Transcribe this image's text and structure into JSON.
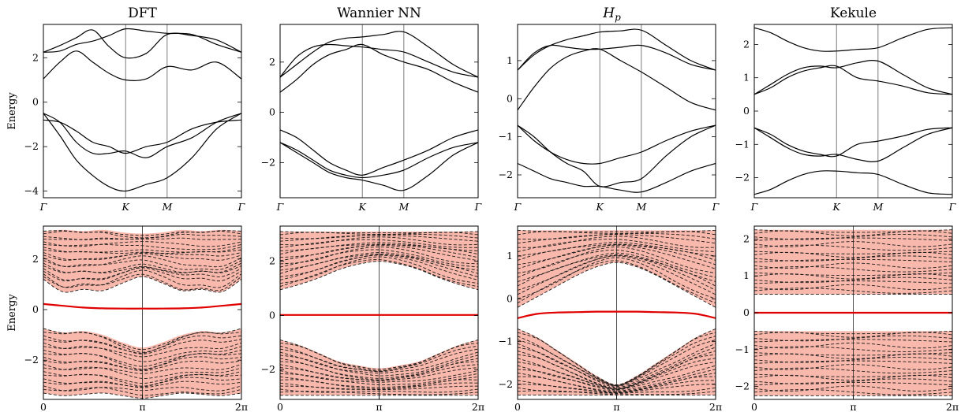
{
  "chart_data": [
    {
      "type": "line",
      "panel": "top",
      "title": "DFT",
      "ylabel": "Energy",
      "ylim": [
        -4.3,
        3.5
      ],
      "yticks": [
        -4,
        -2,
        0,
        2
      ],
      "xticks": [
        "Γ",
        "K",
        "M",
        "Γ"
      ],
      "x": [
        0,
        1,
        2,
        3,
        4,
        5,
        6,
        7,
        8,
        9,
        10
      ],
      "series": [
        {
          "values": [
            2.25,
            2.3,
            2.6,
            2.75,
            3.0,
            3.3,
            3.2,
            3.1,
            3.05,
            2.6,
            2.25
          ]
        },
        {
          "values": [
            2.25,
            2.55,
            2.9,
            3.25,
            2.5,
            2.0,
            2.2,
            3.05,
            3.0,
            2.8,
            2.25
          ]
        },
        {
          "values": [
            1.05,
            1.8,
            2.3,
            1.8,
            1.3,
            1.0,
            1.05,
            1.6,
            1.45,
            1.8,
            1.05
          ]
        },
        {
          "values": [
            -0.8,
            -0.9,
            -1.3,
            -1.8,
            -2.0,
            -2.3,
            -2.0,
            -1.8,
            -1.2,
            -0.9,
            -0.8
          ]
        },
        {
          "values": [
            -0.5,
            -0.9,
            -1.8,
            -2.3,
            -2.3,
            -2.2,
            -2.5,
            -2.0,
            -1.6,
            -0.9,
            -0.5
          ]
        },
        {
          "values": [
            -0.5,
            -1.5,
            -2.6,
            -3.3,
            -3.8,
            -4.0,
            -3.7,
            -3.4,
            -2.5,
            -1.2,
            -0.5
          ]
        }
      ]
    },
    {
      "type": "line",
      "panel": "top",
      "title": "Wannier NN",
      "ylabel": "",
      "ylim": [
        -3.4,
        3.5
      ],
      "yticks": [
        -2,
        0,
        2
      ],
      "xticks": [
        "Γ",
        "K",
        "M",
        "Γ"
      ],
      "x": [
        0,
        1,
        2,
        3,
        4,
        5,
        6,
        7,
        8,
        9,
        10
      ],
      "series": [
        {
          "values": [
            1.4,
            1.9,
            2.4,
            2.8,
            2.95,
            3.0,
            3.1,
            3.2,
            2.6,
            1.9,
            1.4
          ]
        },
        {
          "values": [
            1.4,
            2.2,
            2.6,
            2.7,
            2.65,
            2.6,
            2.5,
            2.4,
            2.0,
            1.6,
            1.4
          ]
        },
        {
          "values": [
            0.8,
            1.3,
            1.9,
            2.3,
            2.5,
            2.7,
            2.3,
            2.0,
            1.7,
            1.2,
            0.8
          ]
        },
        {
          "values": [
            -0.7,
            -1.0,
            -1.5,
            -2.0,
            -2.3,
            -2.5,
            -2.2,
            -1.9,
            -1.5,
            -1.0,
            -0.7
          ]
        },
        {
          "values": [
            -1.2,
            -1.5,
            -1.9,
            -2.3,
            -2.5,
            -2.6,
            -2.5,
            -2.3,
            -1.8,
            -1.4,
            -1.2
          ]
        },
        {
          "values": [
            -1.2,
            -1.6,
            -2.0,
            -2.4,
            -2.6,
            -2.7,
            -2.9,
            -3.1,
            -2.5,
            -1.7,
            -1.2
          ]
        }
      ]
    },
    {
      "type": "line",
      "panel": "top",
      "title": "Hp",
      "title_main": "H",
      "title_sub": "p",
      "ylabel": "",
      "ylim": [
        -2.6,
        1.95
      ],
      "yticks": [
        -2,
        -1,
        0,
        1
      ],
      "xticks": [
        "Γ",
        "K",
        "M",
        "Γ"
      ],
      "x": [
        0,
        1,
        2,
        3,
        4,
        5,
        6,
        7,
        8,
        9,
        10
      ],
      "series": [
        {
          "values": [
            0.75,
            1.15,
            1.4,
            1.55,
            1.65,
            1.75,
            1.78,
            1.8,
            1.4,
            1.0,
            0.75
          ]
        },
        {
          "values": [
            0.75,
            1.2,
            1.4,
            1.35,
            1.3,
            1.3,
            1.35,
            1.4,
            1.2,
            0.9,
            0.75
          ]
        },
        {
          "values": [
            -0.3,
            0.3,
            0.8,
            1.1,
            1.25,
            1.3,
            1.0,
            0.7,
            0.3,
            -0.1,
            -0.3
          ]
        },
        {
          "values": [
            -0.7,
            -1.0,
            -1.4,
            -1.7,
            -1.9,
            -2.3,
            -2.2,
            -2.1,
            -1.5,
            -1.0,
            -0.7
          ]
        },
        {
          "values": [
            -0.7,
            -1.1,
            -1.4,
            -1.6,
            -1.7,
            -1.7,
            -1.55,
            -1.4,
            -1.1,
            -0.85,
            -0.7
          ]
        },
        {
          "values": [
            -1.7,
            -1.9,
            -2.1,
            -2.2,
            -2.3,
            -2.3,
            -2.4,
            -2.45,
            -2.2,
            -1.9,
            -1.7
          ]
        }
      ]
    },
    {
      "type": "line",
      "panel": "top",
      "title": "Kekule",
      "ylabel": "",
      "ylim": [
        -2.6,
        2.6
      ],
      "yticks": [
        -2,
        -1,
        0,
        1,
        2
      ],
      "xticks": [
        "Γ",
        "K",
        "M",
        "Γ"
      ],
      "x": [
        0,
        1,
        2,
        3,
        4,
        5,
        6,
        7,
        8,
        9,
        10
      ],
      "series": [
        {
          "values": [
            2.5,
            2.35,
            2.1,
            1.9,
            1.8,
            1.8,
            1.85,
            1.9,
            2.2,
            2.45,
            2.5
          ]
        },
        {
          "values": [
            0.5,
            0.8,
            1.1,
            1.3,
            1.35,
            1.3,
            1.45,
            1.5,
            1.1,
            0.7,
            0.5
          ]
        },
        {
          "values": [
            0.5,
            0.7,
            1.0,
            1.2,
            1.3,
            1.35,
            1.0,
            0.9,
            0.75,
            0.55,
            0.5
          ]
        },
        {
          "values": [
            -0.5,
            -0.7,
            -1.0,
            -1.2,
            -1.3,
            -1.35,
            -1.0,
            -0.9,
            -0.75,
            -0.55,
            -0.5
          ]
        },
        {
          "values": [
            -0.5,
            -0.8,
            -1.1,
            -1.3,
            -1.35,
            -1.3,
            -1.45,
            -1.5,
            -1.1,
            -0.7,
            -0.5
          ]
        },
        {
          "values": [
            -2.5,
            -2.35,
            -2.1,
            -1.9,
            -1.8,
            -1.8,
            -1.85,
            -1.9,
            -2.2,
            -2.45,
            -2.5
          ]
        }
      ]
    },
    {
      "type": "line",
      "panel": "bottom",
      "title": "",
      "ylabel": "Energy",
      "ylim": [
        -3.55,
        3.3
      ],
      "yticks": [
        -2,
        0,
        2
      ],
      "xtick_labels": [
        "0",
        "π",
        "2π"
      ],
      "bulk_bands": [
        {
          "lower": [
            1.2,
            0.7,
            0.8,
            0.75,
            1.05,
            1.3,
            1.05,
            0.75,
            0.8,
            0.7,
            1.2
          ],
          "upper": [
            3.1,
            3.15,
            3.1,
            3.15,
            3.05,
            3.0,
            3.05,
            3.15,
            3.1,
            3.15,
            3.1
          ]
        },
        {
          "lower": [
            -3.3,
            -3.4,
            -3.35,
            -3.3,
            -3.4,
            -3.5,
            -3.4,
            -3.3,
            -3.35,
            -3.4,
            -3.3
          ],
          "upper": [
            -0.75,
            -0.9,
            -0.85,
            -1.0,
            -1.3,
            -1.5,
            -1.3,
            -1.0,
            -0.85,
            -0.9,
            -0.75
          ]
        }
      ],
      "edge_state": [
        0.22,
        0.15,
        0.08,
        0.05,
        0.04,
        0.04,
        0.04,
        0.05,
        0.08,
        0.15,
        0.22
      ]
    },
    {
      "type": "line",
      "panel": "bottom",
      "title": "",
      "ylabel": "",
      "ylim": [
        -3.1,
        3.3
      ],
      "yticks": [
        -2,
        0,
        2
      ],
      "xtick_labels": [
        "0",
        "π",
        "2π"
      ],
      "bulk_bands": [
        {
          "lower": [
            0.95,
            1.15,
            1.4,
            1.7,
            1.9,
            2.0,
            1.9,
            1.7,
            1.4,
            1.15,
            0.95
          ],
          "upper": [
            3.1,
            3.1,
            3.1,
            3.1,
            3.1,
            3.1,
            3.1,
            3.1,
            3.1,
            3.1,
            3.1
          ]
        },
        {
          "lower": [
            -2.95,
            -2.95,
            -2.95,
            -2.95,
            -2.95,
            -2.95,
            -2.95,
            -2.95,
            -2.95,
            -2.95,
            -2.95
          ],
          "upper": [
            -0.9,
            -1.1,
            -1.4,
            -1.7,
            -1.85,
            -1.95,
            -1.85,
            -1.7,
            -1.4,
            -1.1,
            -0.9
          ]
        }
      ],
      "edge_state": [
        0.02,
        0.02,
        0.02,
        0.02,
        0.02,
        0.02,
        0.02,
        0.02,
        0.02,
        0.02,
        0.02
      ]
    },
    {
      "type": "line",
      "panel": "bottom",
      "title": "",
      "ylabel": "",
      "ylim": [
        -2.35,
        1.7
      ],
      "yticks": [
        -2,
        -1,
        0,
        1
      ],
      "xtick_labels": [
        "0",
        "π",
        "2π"
      ],
      "bulk_bands": [
        {
          "lower": [
            -0.2,
            0.05,
            0.3,
            0.55,
            0.75,
            0.85,
            0.75,
            0.55,
            0.3,
            0.05,
            -0.2
          ],
          "upper": [
            1.6,
            1.6,
            1.6,
            1.6,
            1.6,
            1.6,
            1.6,
            1.6,
            1.6,
            1.6,
            1.6
          ]
        },
        {
          "lower": [
            -2.25,
            -2.25,
            -2.25,
            -2.25,
            -2.25,
            -2.25,
            -2.25,
            -2.25,
            -2.25,
            -2.25,
            -2.25
          ],
          "upper": [
            -0.7,
            -0.9,
            -1.2,
            -1.5,
            -1.8,
            -2.0,
            -1.8,
            -1.5,
            -1.2,
            -0.9,
            -0.7
          ]
        }
      ],
      "edge_state": [
        -0.45,
        -0.35,
        -0.32,
        -0.31,
        -0.3,
        -0.3,
        -0.3,
        -0.31,
        -0.32,
        -0.35,
        -0.45
      ]
    },
    {
      "type": "line",
      "panel": "bottom",
      "title": "",
      "ylabel": "",
      "ylim": [
        -2.35,
        2.35
      ],
      "yticks": [
        -2,
        -1,
        0,
        1,
        2
      ],
      "xtick_labels": [
        "0",
        "π",
        "2π"
      ],
      "bulk_bands": [
        {
          "lower": [
            0.5,
            0.5,
            0.5,
            0.5,
            0.5,
            0.5,
            0.5,
            0.5,
            0.5,
            0.5,
            0.5
          ],
          "upper": [
            2.25,
            2.25,
            2.25,
            2.25,
            2.25,
            2.25,
            2.25,
            2.25,
            2.25,
            2.25,
            2.25
          ]
        },
        {
          "lower": [
            -2.25,
            -2.25,
            -2.25,
            -2.25,
            -2.25,
            -2.25,
            -2.25,
            -2.25,
            -2.25,
            -2.25,
            -2.25
          ],
          "upper": [
            -0.5,
            -0.5,
            -0.5,
            -0.5,
            -0.5,
            -0.5,
            -0.5,
            -0.5,
            -0.5,
            -0.5,
            -0.5
          ]
        }
      ],
      "edge_state": [
        0,
        0,
        0,
        0,
        0,
        0,
        0,
        0,
        0,
        0,
        0
      ]
    }
  ],
  "colors": {
    "band_line": "#000000",
    "bulk_fill": "#f8b8ac",
    "edge_state": "#e00000",
    "axis": "#000000"
  }
}
